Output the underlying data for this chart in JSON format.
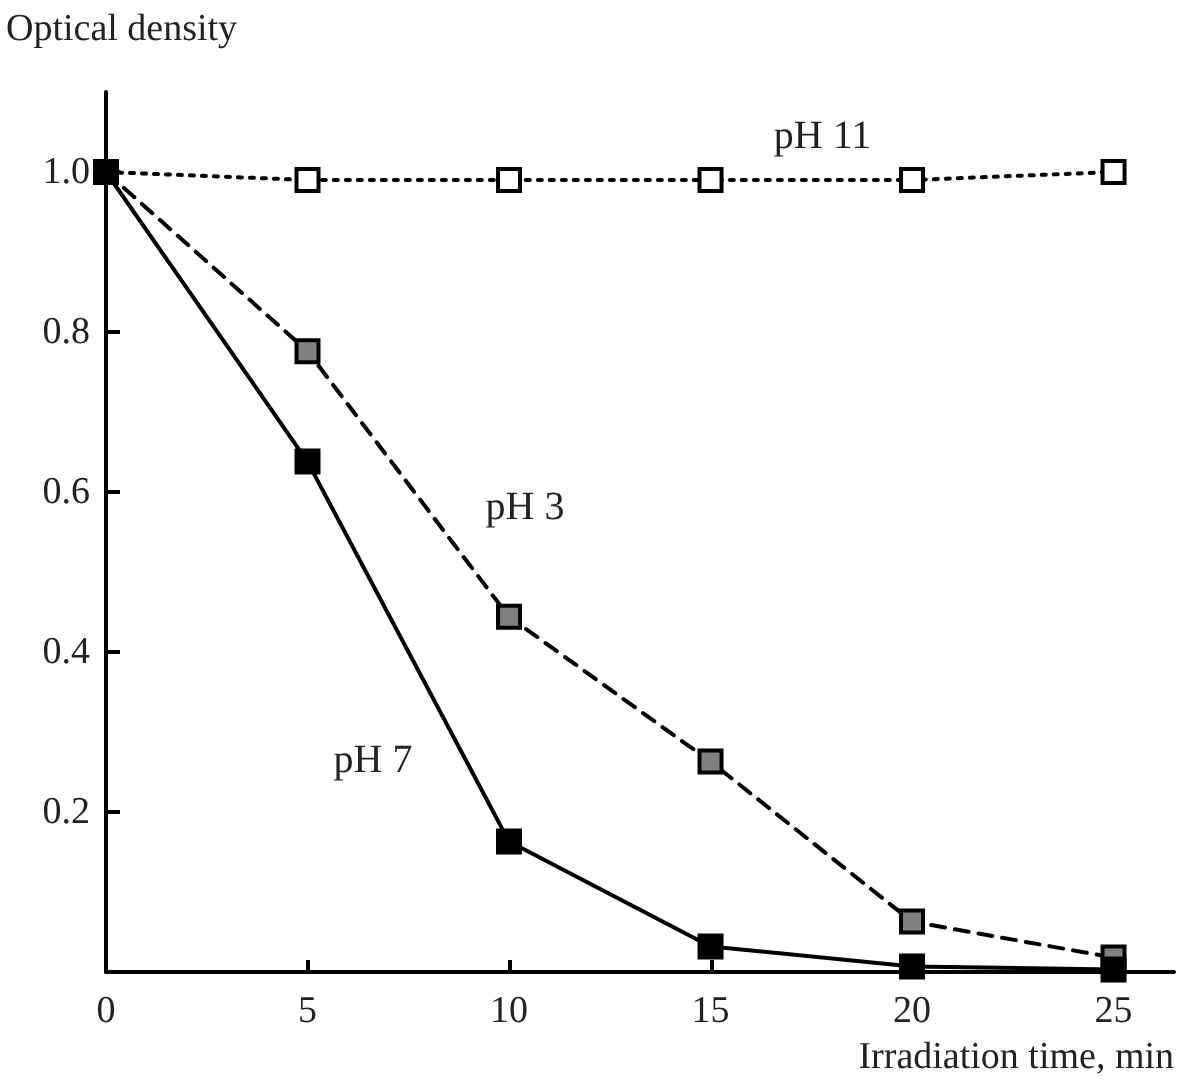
{
  "chart_data": {
    "type": "line",
    "xlabel": "Irradiation time, min",
    "ylabel": "Optical density",
    "x": [
      0,
      5,
      10,
      15,
      20,
      25
    ],
    "series": [
      {
        "name": "pH 11",
        "color": "#ffffff",
        "line_style": "dotted",
        "values": [
          1.0,
          0.99,
          0.99,
          0.99,
          0.99,
          1.0
        ]
      },
      {
        "name": "pH 3",
        "color": "#808080",
        "line_style": "dashed",
        "values": [
          1.0,
          0.776,
          0.444,
          0.263,
          0.063,
          0.018
        ]
      },
      {
        "name": "pH 7",
        "color": "#000000",
        "line_style": "solid",
        "values": [
          1.0,
          0.638,
          0.163,
          0.032,
          0.007,
          0.003
        ]
      }
    ],
    "marker": "square",
    "grid": false,
    "legend": false,
    "xlim": [
      0,
      26.5
    ],
    "ylim": [
      0,
      1.1
    ],
    "xticks": [
      0,
      5,
      10,
      15,
      20,
      25
    ],
    "yticks": [
      0.2,
      0.4,
      0.6,
      0.8,
      {
        "value": 1.0,
        "label": "1.0"
      }
    ]
  }
}
